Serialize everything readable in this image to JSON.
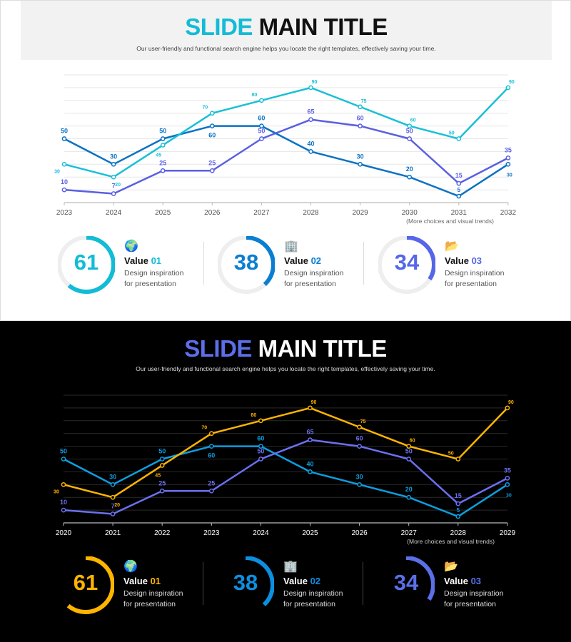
{
  "slides": [
    {
      "theme": "light",
      "title_accent": "SLIDE",
      "title_rest": " MAIN TITLE",
      "subtitle": "Our user-friendly and functional search engine helps you locate the right templates, effectively saving your time.",
      "note": "(More choices and visual trends)",
      "colors": {
        "accent": "#12bcd6",
        "series": [
          "#0a72c4",
          "#18c0d6",
          "#5a5fe0"
        ],
        "text": "#333",
        "grid": "#e6e6e6",
        "track": "#eeeeee"
      },
      "kpis": [
        {
          "value": "61",
          "percent": 61,
          "label": "Value ",
          "num": "01",
          "desc1": "Design inspiration",
          "desc2": "for presentation",
          "icon": "globe-icon",
          "color": "#12bcd6"
        },
        {
          "value": "38",
          "percent": 38,
          "label": "Value ",
          "num": "02",
          "desc1": "Design inspiration",
          "desc2": "for presentation",
          "icon": "building-icon",
          "color": "#0a7ed2"
        },
        {
          "value": "34",
          "percent": 34,
          "label": "Value ",
          "num": "03",
          "desc1": "Design inspiration",
          "desc2": "for presentation",
          "icon": "folder-icon",
          "color": "#5566e8"
        }
      ]
    },
    {
      "theme": "dark",
      "title_accent": "SLIDE",
      "title_rest": " MAIN TITLE",
      "subtitle": "Our user-friendly and functional search engine helps you locate the right templates, effectively saving your time.",
      "note": "(More choices and visual trends)",
      "colors": {
        "accent": "#5a6fe8",
        "series": [
          "#0c9ee0",
          "#ffb400",
          "#6c70f0"
        ],
        "text": "#fff",
        "grid": "#2a2a2a",
        "track": null
      },
      "kpis": [
        {
          "value": "61",
          "percent": 61,
          "label": "Value ",
          "num": "01",
          "desc1": "Design inspiration",
          "desc2": "for presentation",
          "icon": "globe-icon",
          "color": "#ffb400"
        },
        {
          "value": "38",
          "percent": 38,
          "label": "Value ",
          "num": "02",
          "desc1": "Design inspiration",
          "desc2": "for presentation",
          "icon": "building-icon",
          "color": "#0c8fe0"
        },
        {
          "value": "34",
          "percent": 34,
          "label": "Value ",
          "num": "03",
          "desc1": "Design inspiration",
          "desc2": "for presentation",
          "icon": "folder-icon",
          "color": "#5a6fe8"
        }
      ]
    }
  ],
  "chart_data": [
    {
      "type": "line",
      "categories": [
        "2023",
        "2024",
        "2025",
        "2026",
        "2027",
        "2028",
        "2029",
        "2030",
        "2031",
        "2032"
      ],
      "ylim": [
        0,
        100
      ],
      "grid": true,
      "series": [
        {
          "values": [
            50,
            30,
            50,
            60,
            60,
            40,
            30,
            20,
            5,
            30
          ]
        },
        {
          "values": [
            30,
            20,
            45,
            70,
            80,
            90,
            75,
            60,
            50,
            90
          ]
        },
        {
          "values": [
            10,
            7,
            25,
            25,
            50,
            65,
            60,
            50,
            15,
            35
          ]
        }
      ]
    },
    {
      "type": "line",
      "categories": [
        "2020",
        "2021",
        "2022",
        "2023",
        "2024",
        "2025",
        "2026",
        "2027",
        "2028",
        "2029"
      ],
      "ylim": [
        0,
        100
      ],
      "grid": true,
      "series": [
        {
          "values": [
            50,
            30,
            50,
            60,
            60,
            40,
            30,
            20,
            5,
            30
          ]
        },
        {
          "values": [
            30,
            20,
            45,
            70,
            80,
            90,
            75,
            60,
            50,
            90
          ]
        },
        {
          "values": [
            10,
            7,
            25,
            25,
            50,
            65,
            60,
            50,
            15,
            35
          ]
        }
      ]
    }
  ]
}
